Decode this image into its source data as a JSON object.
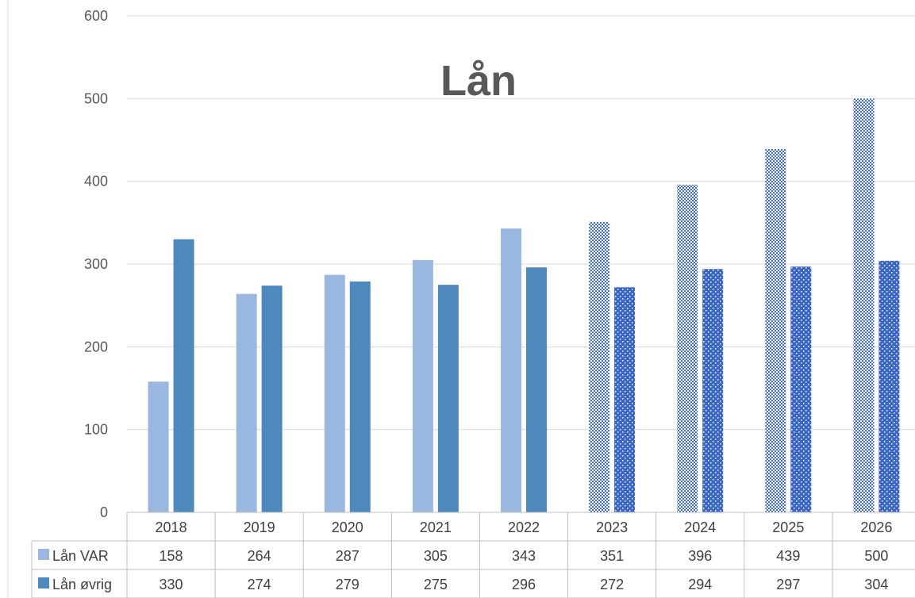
{
  "chart_data": {
    "type": "bar",
    "title": "Lån",
    "categories": [
      "2018",
      "2019",
      "2020",
      "2021",
      "2022",
      "2023",
      "2024",
      "2025",
      "2026"
    ],
    "series": [
      {
        "name": "Lån VAR",
        "values": [
          158,
          264,
          287,
          305,
          343,
          351,
          396,
          439,
          500
        ],
        "color": "#9ab8df"
      },
      {
        "name": "Lån øvrig",
        "values": [
          330,
          274,
          279,
          275,
          296,
          272,
          294,
          297,
          304
        ],
        "color": "#4f88bd"
      }
    ],
    "forecast_from": "2023",
    "forecast_colors": [
      "#3f6ec6",
      "#3a67c4"
    ],
    "ylim": [
      0,
      600
    ],
    "yticks": [
      0,
      100,
      200,
      300,
      400,
      500,
      600
    ],
    "grid": true,
    "legend": "data-table"
  }
}
